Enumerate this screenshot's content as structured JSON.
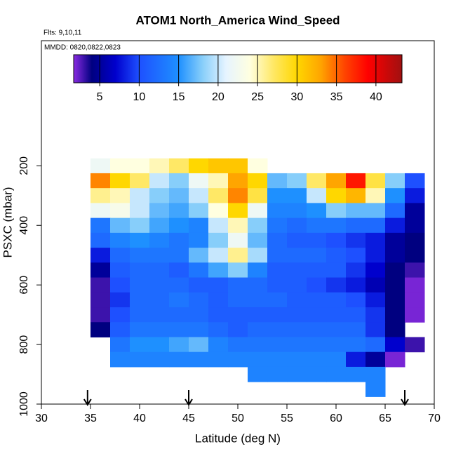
{
  "chart_data": {
    "type": "heatmap",
    "title": "ATOM1 North_America Wind_Speed",
    "subtitle": "Flts: 9,10,11",
    "annotation": "MMDD: 0820,0822,0823",
    "x_label": "Latitude (deg N)",
    "y_label": "PSXC (mbar)",
    "xlim": [
      30,
      70
    ],
    "xticks": [
      30,
      35,
      40,
      45,
      50,
      55,
      60,
      65,
      70
    ],
    "ylim": [
      1000,
      -220
    ],
    "yticks": [
      200,
      400,
      600,
      800,
      1000
    ],
    "colorbar_lim": [
      1.7,
      43.3
    ],
    "colorbar_ticks": [
      5,
      10,
      15,
      20,
      25,
      30,
      35,
      40
    ],
    "colorscale": [
      [
        1.7,
        "#8a2be2"
      ],
      [
        4,
        "#000080"
      ],
      [
        7,
        "#0000cd"
      ],
      [
        10,
        "#1e50ff"
      ],
      [
        15,
        "#1e90ff"
      ],
      [
        18,
        "#87cefa"
      ],
      [
        21,
        "#e6f4ff"
      ],
      [
        24,
        "#ffffe0"
      ],
      [
        27,
        "#ffe866"
      ],
      [
        30,
        "#ffd700"
      ],
      [
        33,
        "#ffa500"
      ],
      [
        36,
        "#ff4500"
      ],
      [
        39,
        "#ff0000"
      ],
      [
        43.3,
        "#a01010"
      ]
    ],
    "arrows_x": [
      34.7,
      45,
      67
    ],
    "x": [
      36,
      38,
      40,
      42,
      44,
      46,
      48,
      50,
      52,
      54,
      56,
      58,
      60,
      62,
      64,
      66,
      68
    ],
    "y": [
      200,
      250,
      300,
      350,
      400,
      450,
      500,
      550,
      600,
      650,
      700,
      750,
      800,
      850,
      900,
      950
    ],
    "z": [
      [
        22,
        24,
        24,
        25,
        27,
        30,
        31,
        31,
        24,
        null,
        null,
        null,
        null,
        null,
        null,
        null,
        null
      ],
      [
        34,
        30,
        27,
        20,
        18,
        22,
        25,
        33,
        30,
        17,
        18,
        27,
        33,
        38,
        28,
        18,
        10
      ],
      [
        26,
        25,
        20,
        18,
        17,
        20,
        27,
        34,
        28,
        15,
        15,
        20,
        30,
        32,
        25,
        15,
        8
      ],
      [
        22,
        23,
        20,
        17,
        16,
        18,
        24,
        30,
        22,
        14,
        14,
        15,
        18,
        17,
        17,
        12,
        5
      ],
      [
        13,
        17,
        18,
        16,
        15,
        14,
        20,
        25,
        18,
        13,
        12,
        13,
        13,
        12,
        12,
        8,
        5
      ],
      [
        12,
        14,
        15,
        14,
        13,
        14,
        18,
        22,
        17,
        12,
        11,
        11,
        10,
        9,
        8,
        5,
        4
      ],
      [
        8,
        12,
        13,
        13,
        13,
        17,
        20,
        26,
        19,
        12,
        12,
        12,
        11,
        10,
        8,
        5,
        4
      ],
      [
        5,
        11,
        12,
        12,
        11,
        13,
        16,
        18,
        14,
        11,
        11,
        11,
        11,
        9,
        7,
        4,
        3
      ],
      [
        3,
        10,
        12,
        12,
        12,
        11,
        11,
        12,
        12,
        11,
        11,
        10,
        9,
        8,
        6,
        4,
        2
      ],
      [
        3,
        9,
        12,
        12,
        13,
        12,
        11,
        12,
        12,
        12,
        11,
        11,
        11,
        10,
        8,
        4,
        2
      ],
      [
        3,
        10,
        12,
        12,
        12,
        12,
        11,
        11,
        11,
        11,
        11,
        11,
        11,
        11,
        9,
        4,
        2
      ],
      [
        4,
        11,
        13,
        13,
        13,
        13,
        12,
        11,
        12,
        12,
        12,
        12,
        12,
        12,
        9,
        4,
        null
      ],
      [
        null,
        13,
        15,
        15,
        16,
        17,
        14,
        13,
        13,
        13,
        13,
        13,
        13,
        13,
        12,
        7,
        3
      ],
      [
        null,
        14,
        14,
        14,
        14,
        14,
        14,
        14,
        14,
        14,
        14,
        14,
        14,
        8,
        5,
        2,
        null
      ],
      [
        null,
        null,
        null,
        null,
        null,
        null,
        null,
        null,
        14,
        14,
        14,
        14,
        14,
        14,
        14,
        null,
        null
      ],
      [
        null,
        null,
        null,
        null,
        null,
        null,
        null,
        null,
        null,
        null,
        null,
        null,
        null,
        null,
        14,
        null,
        null
      ]
    ]
  }
}
